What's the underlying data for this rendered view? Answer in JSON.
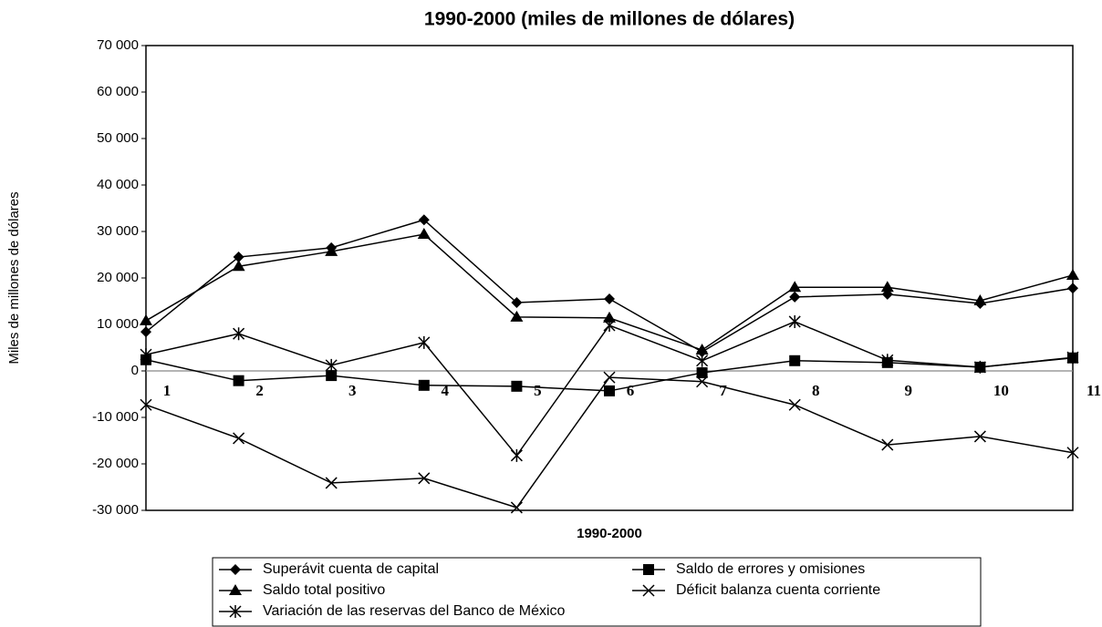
{
  "chart_data": {
    "type": "line",
    "title": "1990-2000 (miles de millones de dólares)",
    "x_label": "1990-2000",
    "y_label": "Miles de millones de dólares",
    "categories": [
      "1",
      "2",
      "3",
      "4",
      "5",
      "6",
      "7",
      "8",
      "9",
      "10",
      "11"
    ],
    "ylim": [
      -30000,
      70000
    ],
    "yticks": [
      {
        "value": -30000,
        "label": "-30 000"
      },
      {
        "value": -20000,
        "label": "-20 000"
      },
      {
        "value": -10000,
        "label": "-10 000"
      },
      0,
      {
        "value": 10000,
        "label": "10 000"
      },
      {
        "value": 20000,
        "label": "20 000"
      },
      {
        "value": 30000,
        "label": "30 000"
      },
      {
        "value": 40000,
        "label": "40 000"
      },
      {
        "value": 50000,
        "label": "50 000"
      },
      {
        "value": 60000,
        "label": "60 000"
      },
      {
        "value": 70000,
        "label": "70 000"
      }
    ],
    "grid": false,
    "series": [
      {
        "name": "Superávit cuenta de capital",
        "color": "#000000",
        "marker": "diamond",
        "values": [
          8400,
          24500,
          26500,
          32500,
          14700,
          15500,
          4100,
          15900,
          16500,
          14500,
          17800
        ]
      },
      {
        "name": "Saldo de errores y omisiones",
        "color": "#000000",
        "marker": "square",
        "values": [
          2400,
          -2100,
          -1000,
          -3100,
          -3300,
          -4300,
          -400,
          2200,
          1800,
          800,
          2800
        ]
      },
      {
        "name": "Saldo total positivo",
        "color": "#000000",
        "marker": "triangle",
        "values": [
          10800,
          22500,
          25700,
          29400,
          11600,
          11400,
          4500,
          18000,
          18000,
          15100,
          20600
        ]
      },
      {
        "name": "Déficit balanza cuenta corriente",
        "color": "#000000",
        "marker": "x",
        "values": [
          -7300,
          -14500,
          -24100,
          -23100,
          -29400,
          -1400,
          -2300,
          -7300,
          -15900,
          -14100,
          -17600
        ]
      },
      {
        "name": "Variación de las reservas del Banco de México",
        "color": "#000000",
        "marker": "asterisk",
        "values": [
          3500,
          8000,
          1200,
          6100,
          -18200,
          9800,
          2200,
          10600,
          2300,
          800,
          2900
        ]
      }
    ]
  }
}
